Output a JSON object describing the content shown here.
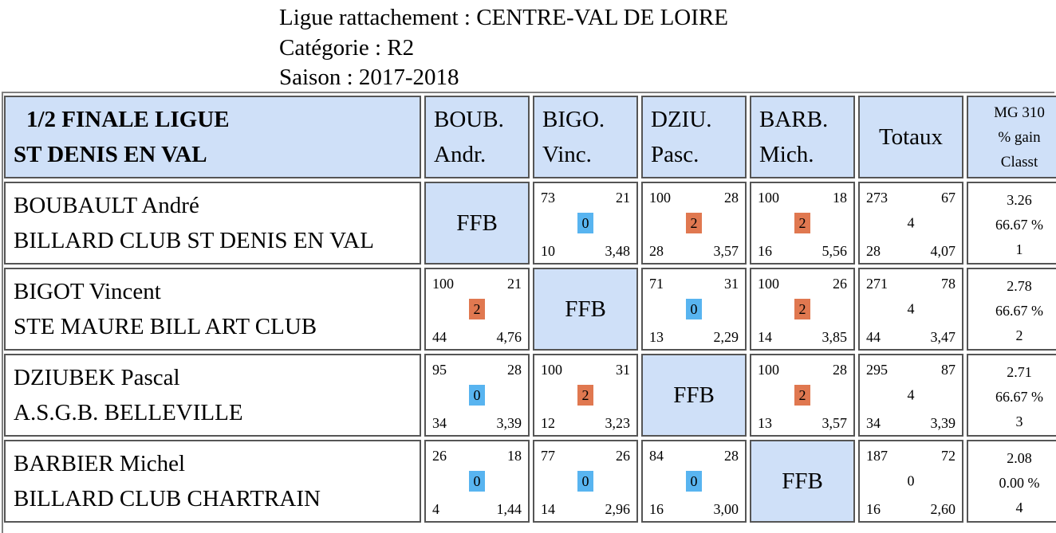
{
  "header": {
    "ligue": "Ligue rattachement : CENTRE-VAL DE LOIRE",
    "categorie": "Catégorie : R2",
    "saison": "Saison : 2017-2018"
  },
  "table": {
    "title_line1": "1/2 FINALE LIGUE",
    "title_line2": "ST DENIS EN VAL",
    "columns": [
      {
        "line1": "BOUB.",
        "line2": "Andr."
      },
      {
        "line1": "BIGO.",
        "line2": "Vinc."
      },
      {
        "line1": "DZIU.",
        "line2": "Pasc."
      },
      {
        "line1": "BARB.",
        "line2": "Mich."
      }
    ],
    "totaux_label": "Totaux",
    "mg_header": {
      "line1": "MG 310",
      "line2": "% gain",
      "line3": "Classt"
    },
    "ffb_label": "FFB",
    "colors": {
      "header_bg": "#cfe0f8",
      "win_badge": "#e07850",
      "loss_badge": "#58b4f0",
      "border": "#555555"
    },
    "rows": [
      {
        "name": "BOUBAULT André",
        "club": "BILLARD CLUB ST DENIS EN VAL",
        "matches": [
          null,
          {
            "points": "73",
            "serie": "21",
            "result": "0",
            "reprises": "10",
            "moyenne": "3,48"
          },
          {
            "points": "100",
            "serie": "28",
            "result": "2",
            "reprises": "28",
            "moyenne": "3,57"
          },
          {
            "points": "100",
            "serie": "18",
            "result": "2",
            "reprises": "16",
            "moyenne": "5,56"
          }
        ],
        "totals": {
          "points": "273",
          "serie": "67",
          "result": "4",
          "reprises": "28",
          "moyenne": "4,07"
        },
        "mg": {
          "value": "3.26",
          "gain": "66.67 %",
          "classt": "1"
        }
      },
      {
        "name": "BIGOT Vincent",
        "club": "STE MAURE BILL ART CLUB",
        "matches": [
          {
            "points": "100",
            "serie": "21",
            "result": "2",
            "reprises": "44",
            "moyenne": "4,76"
          },
          null,
          {
            "points": "71",
            "serie": "31",
            "result": "0",
            "reprises": "13",
            "moyenne": "2,29"
          },
          {
            "points": "100",
            "serie": "26",
            "result": "2",
            "reprises": "14",
            "moyenne": "3,85"
          }
        ],
        "totals": {
          "points": "271",
          "serie": "78",
          "result": "4",
          "reprises": "44",
          "moyenne": "3,47"
        },
        "mg": {
          "value": "2.78",
          "gain": "66.67 %",
          "classt": "2"
        }
      },
      {
        "name": "DZIUBEK Pascal",
        "club": "A.S.G.B. BELLEVILLE",
        "matches": [
          {
            "points": "95",
            "serie": "28",
            "result": "0",
            "reprises": "34",
            "moyenne": "3,39"
          },
          {
            "points": "100",
            "serie": "31",
            "result": "2",
            "reprises": "12",
            "moyenne": "3,23"
          },
          null,
          {
            "points": "100",
            "serie": "28",
            "result": "2",
            "reprises": "13",
            "moyenne": "3,57"
          }
        ],
        "totals": {
          "points": "295",
          "serie": "87",
          "result": "4",
          "reprises": "34",
          "moyenne": "3,39"
        },
        "mg": {
          "value": "2.71",
          "gain": "66.67 %",
          "classt": "3"
        }
      },
      {
        "name": "BARBIER Michel",
        "club": "BILLARD CLUB CHARTRAIN",
        "matches": [
          {
            "points": "26",
            "serie": "18",
            "result": "0",
            "reprises": "4",
            "moyenne": "1,44"
          },
          {
            "points": "77",
            "serie": "26",
            "result": "0",
            "reprises": "14",
            "moyenne": "2,96"
          },
          {
            "points": "84",
            "serie": "28",
            "result": "0",
            "reprises": "16",
            "moyenne": "3,00"
          },
          null
        ],
        "totals": {
          "points": "187",
          "serie": "72",
          "result": "0",
          "reprises": "16",
          "moyenne": "2,60"
        },
        "mg": {
          "value": "2.08",
          "gain": "0.00 %",
          "classt": "4"
        }
      }
    ]
  }
}
